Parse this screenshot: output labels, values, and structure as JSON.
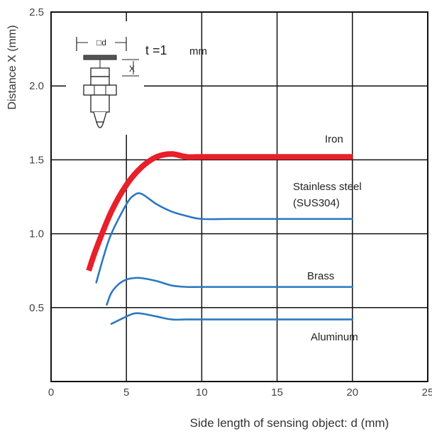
{
  "chart_data": {
    "type": "line",
    "xlabel": "Side length of sensing object: d (mm)",
    "ylabel": "Distance X (mm)",
    "xlim": [
      0,
      25
    ],
    "ylim": [
      0,
      2.5
    ],
    "xticks": [
      "0",
      "5",
      "10",
      "15",
      "20",
      "25"
    ],
    "yticks": [
      "0.5",
      "1.0",
      "1.5",
      "2.0",
      "2.5"
    ],
    "grid": true,
    "annotation": {
      "t_label": "t =1",
      "t_unit": "mm",
      "d_label": "□d",
      "x_label": "X"
    },
    "series": [
      {
        "name": "Iron",
        "color": "#e8202a",
        "x": [
          2.5,
          3,
          4,
          5,
          6,
          7,
          8,
          9,
          10,
          12,
          15,
          20
        ],
        "y": [
          0.75,
          0.9,
          1.15,
          1.33,
          1.45,
          1.52,
          1.54,
          1.52,
          1.52,
          1.52,
          1.52,
          1.52
        ]
      },
      {
        "name": "Stainless steel",
        "name2": "(SUS304)",
        "color": "#2a78c2",
        "x": [
          3,
          3.5,
          4,
          5,
          5.5,
          6,
          7,
          8,
          9,
          10,
          12,
          15,
          20
        ],
        "y": [
          0.67,
          0.85,
          1.0,
          1.2,
          1.26,
          1.27,
          1.2,
          1.15,
          1.12,
          1.1,
          1.1,
          1.1,
          1.1
        ]
      },
      {
        "name": "Brass",
        "color": "#2a78c2",
        "x": [
          3.7,
          4,
          4.5,
          5,
          5.5,
          6,
          7,
          8,
          9,
          10,
          12,
          15,
          20
        ],
        "y": [
          0.52,
          0.6,
          0.66,
          0.69,
          0.7,
          0.7,
          0.68,
          0.65,
          0.64,
          0.64,
          0.64,
          0.64,
          0.64
        ]
      },
      {
        "name": "Aluminum",
        "color": "#2a78c2",
        "x": [
          4,
          5,
          5.5,
          6,
          7,
          8,
          9,
          10,
          12,
          15,
          20
        ],
        "y": [
          0.39,
          0.44,
          0.46,
          0.46,
          0.44,
          0.42,
          0.42,
          0.42,
          0.42,
          0.42,
          0.42
        ]
      }
    ]
  }
}
